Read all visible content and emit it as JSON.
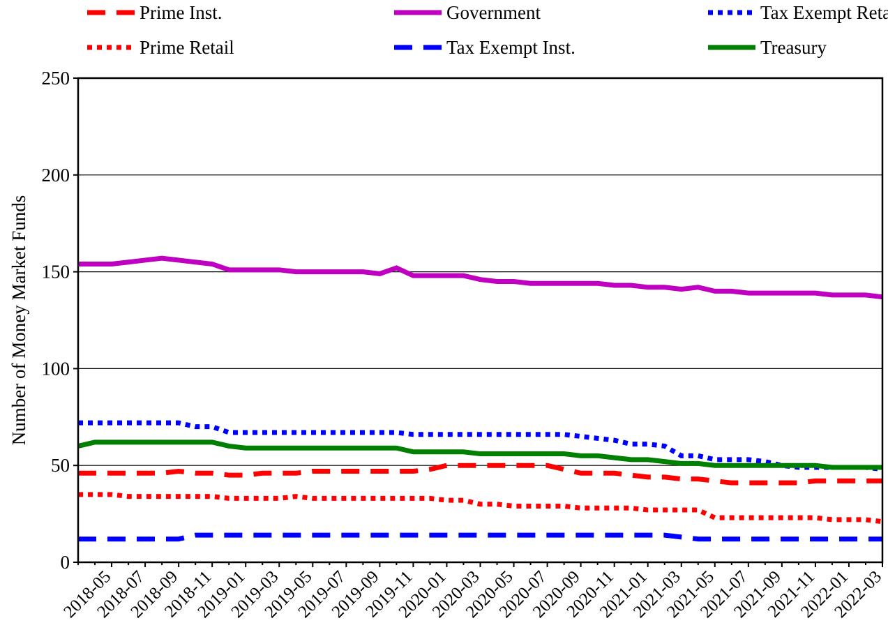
{
  "chart_data": {
    "type": "line",
    "y_label": "Number of Money Market Funds",
    "categories": [
      null,
      null,
      "2018-05",
      null,
      "2018-07",
      null,
      "2018-09",
      null,
      "2018-11",
      null,
      "2019-01",
      null,
      "2019-03",
      null,
      "2019-05",
      null,
      "2019-07",
      null,
      "2019-09",
      null,
      "2019-11",
      null,
      "2020-01",
      null,
      "2020-03",
      null,
      "2020-05",
      null,
      "2020-07",
      null,
      "2020-09",
      null,
      "2020-11",
      null,
      "2021-01",
      null,
      "2021-03",
      null,
      "2021-05",
      null,
      "2021-07",
      null,
      "2021-09",
      null,
      "2021-11",
      null,
      "2022-01",
      null,
      "2022-03"
    ],
    "ylim": [
      0,
      250
    ],
    "yticks": [
      0,
      50,
      100,
      150,
      200,
      250
    ],
    "grid": true,
    "series": [
      {
        "name": "Prime Inst.",
        "color": "#ff0000",
        "style": "dashed",
        "values": [
          46,
          46,
          46,
          46,
          46,
          46,
          47,
          46,
          46,
          45,
          45,
          46,
          46,
          46,
          47,
          47,
          47,
          47,
          47,
          47,
          47,
          48,
          50,
          50,
          50,
          50,
          50,
          50,
          50,
          48,
          46,
          46,
          46,
          45,
          44,
          44,
          43,
          43,
          42,
          41,
          41,
          41,
          41,
          41,
          42,
          42,
          42,
          42,
          42
        ]
      },
      {
        "name": "Prime Retail",
        "color": "#ff0000",
        "style": "dotted",
        "values": [
          35,
          35,
          35,
          34,
          34,
          34,
          34,
          34,
          34,
          33,
          33,
          33,
          33,
          34,
          33,
          33,
          33,
          33,
          33,
          33,
          33,
          33,
          32,
          32,
          30,
          30,
          29,
          29,
          29,
          29,
          28,
          28,
          28,
          28,
          27,
          27,
          27,
          27,
          23,
          23,
          23,
          23,
          23,
          23,
          23,
          22,
          22,
          22,
          21
        ]
      },
      {
        "name": "Government",
        "color": "#c000c0",
        "style": "solid",
        "values": [
          154,
          154,
          154,
          155,
          156,
          157,
          156,
          155,
          154,
          151,
          151,
          151,
          151,
          150,
          150,
          150,
          150,
          150,
          149,
          152,
          148,
          148,
          148,
          148,
          146,
          145,
          145,
          144,
          144,
          144,
          144,
          144,
          143,
          143,
          142,
          142,
          141,
          142,
          140,
          140,
          139,
          139,
          139,
          139,
          139,
          138,
          138,
          138,
          137
        ]
      },
      {
        "name": "Tax Exempt Inst.",
        "color": "#0000ff",
        "style": "dashed",
        "values": [
          12,
          12,
          12,
          12,
          12,
          12,
          12,
          14,
          14,
          14,
          14,
          14,
          14,
          14,
          14,
          14,
          14,
          14,
          14,
          14,
          14,
          14,
          14,
          14,
          14,
          14,
          14,
          14,
          14,
          14,
          14,
          14,
          14,
          14,
          14,
          14,
          13,
          12,
          12,
          12,
          12,
          12,
          12,
          12,
          12,
          12,
          12,
          12,
          12
        ]
      },
      {
        "name": "Tax Exempt Retail",
        "color": "#0000ff",
        "style": "dotted",
        "values": [
          72,
          72,
          72,
          72,
          72,
          72,
          72,
          70,
          70,
          67,
          67,
          67,
          67,
          67,
          67,
          67,
          67,
          67,
          67,
          67,
          66,
          66,
          66,
          66,
          66,
          66,
          66,
          66,
          66,
          66,
          65,
          64,
          63,
          61,
          61,
          60,
          55,
          55,
          53,
          53,
          53,
          52,
          50,
          49,
          49,
          49,
          49,
          49,
          48
        ]
      },
      {
        "name": "Treasury",
        "color": "#008000",
        "style": "solid",
        "values": [
          60,
          62,
          62,
          62,
          62,
          62,
          62,
          62,
          62,
          60,
          59,
          59,
          59,
          59,
          59,
          59,
          59,
          59,
          59,
          59,
          57,
          57,
          57,
          57,
          56,
          56,
          56,
          56,
          56,
          56,
          55,
          55,
          54,
          53,
          53,
          52,
          51,
          51,
          50,
          50,
          50,
          50,
          50,
          50,
          50,
          49,
          49,
          49,
          49
        ]
      }
    ]
  }
}
